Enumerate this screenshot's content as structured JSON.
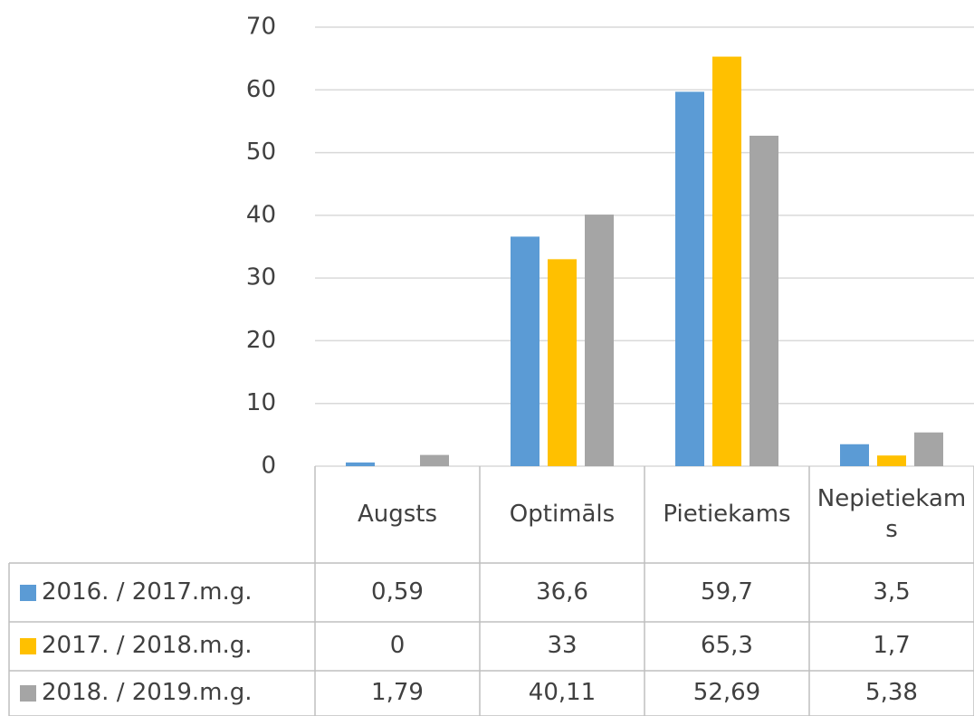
{
  "chart_data": {
    "type": "bar",
    "categories": [
      "Augsts",
      "Optimāls",
      "Pietiekams",
      "Nepietiekams"
    ],
    "series": [
      {
        "name": "2016. / 2017.m.g.",
        "color": "#5b9bd5",
        "values": [
          0.59,
          36.6,
          59.7,
          3.5
        ],
        "value_labels": [
          "0,59",
          "36,6",
          "59,7",
          "3,5"
        ]
      },
      {
        "name": "2017. / 2018.m.g.",
        "color": "#ffc000",
        "values": [
          0,
          33,
          65.3,
          1.7
        ],
        "value_labels": [
          "0",
          "33",
          "65,3",
          "1,7"
        ]
      },
      {
        "name": "2018. / 2019.m.g.",
        "color": "#a5a5a5",
        "values": [
          1.79,
          40.11,
          52.69,
          5.38
        ],
        "value_labels": [
          "1,79",
          "40,11",
          "52,69",
          "5,38"
        ]
      }
    ],
    "ylim": [
      0,
      70
    ],
    "yticks": [
      0,
      10,
      20,
      30,
      40,
      50,
      60,
      70
    ],
    "grid": true
  }
}
